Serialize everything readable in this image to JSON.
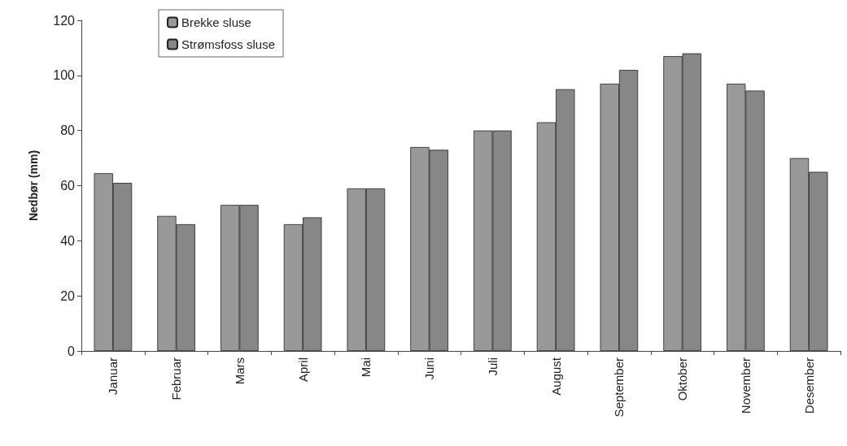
{
  "chart_data": {
    "type": "bar",
    "ylabel": "Nedbør (mm)",
    "categories": [
      "Januar",
      "Februar",
      "Mars",
      "April",
      "Mai",
      "Juni",
      "Juli",
      "August",
      "September",
      "Oktober",
      "November",
      "Desember"
    ],
    "series": [
      {
        "name": "Brekke sluse",
        "color": "#999999",
        "values": [
          64.5,
          49,
          53,
          46,
          59,
          74,
          80,
          83,
          97,
          107,
          97,
          70
        ]
      },
      {
        "name": "Strømsfoss sluse",
        "color": "#878787",
        "values": [
          61,
          46,
          53,
          48.5,
          59,
          73,
          80,
          95,
          102,
          108,
          94.5,
          65
        ]
      }
    ],
    "ylim": [
      0,
      120
    ],
    "yticks": [
      0,
      20,
      40,
      60,
      80,
      100,
      120
    ],
    "grid": false,
    "legend": "top left"
  }
}
